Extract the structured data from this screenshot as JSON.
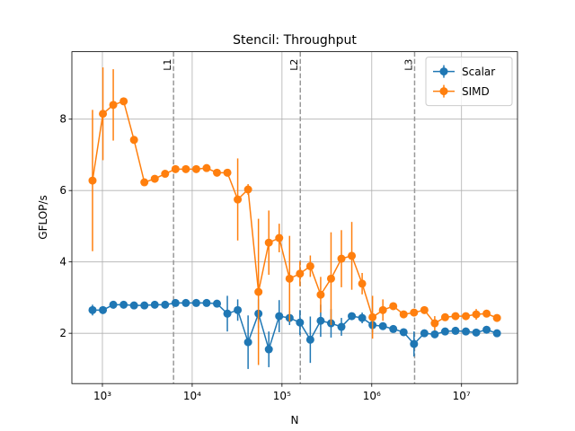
{
  "chart_data": {
    "type": "errorbar_line",
    "title": "Stencil: Throughput",
    "xlabel": "N",
    "ylabel": "GFLOP/s",
    "xscale": "log",
    "grid": true,
    "legend": "upper right",
    "xlim": [
      457,
      42000000
    ],
    "ylim": [
      0.59,
      9.89
    ],
    "xticks": [
      {
        "value": 1000,
        "label": "10³"
      },
      {
        "value": 10000,
        "label": "10⁴"
      },
      {
        "value": 100000,
        "label": "10⁵"
      },
      {
        "value": 1000000,
        "label": "10⁶"
      },
      {
        "value": 10000000,
        "label": "10⁷"
      }
    ],
    "yticks": [
      2,
      4,
      6,
      8
    ],
    "vlines": [
      {
        "value": 6200,
        "label": "L1"
      },
      {
        "value": 160000,
        "label": "L2"
      },
      {
        "value": 3000000,
        "label": "L3"
      }
    ],
    "x": [
      776,
      1013,
      1321,
      1724,
      2249,
      2934,
      3828,
      4995,
      6516,
      8502,
      11092,
      14472,
      18880,
      24634,
      32137,
      41933,
      54702,
      71368,
      93111,
      121478,
      158489,
      206776,
      269774,
      351962,
      459198,
      599100,
      781628,
      1019764,
      1330454,
      1735800,
      2264644,
      2954570,
      3854784,
      5029269,
      6561500,
      8560000,
      11168000,
      14571000,
      19011000,
      24803000
    ],
    "series": [
      {
        "name": "Scalar",
        "color": "#1f77b4",
        "values": [
          2.65,
          2.65,
          2.8,
          2.8,
          2.78,
          2.78,
          2.8,
          2.8,
          2.85,
          2.85,
          2.85,
          2.85,
          2.83,
          2.55,
          2.65,
          1.75,
          2.55,
          1.55,
          2.48,
          2.43,
          2.3,
          1.82,
          2.35,
          2.28,
          2.18,
          2.48,
          2.43,
          2.23,
          2.2,
          2.12,
          2.03,
          1.7,
          2.0,
          1.97,
          2.05,
          2.07,
          2.05,
          2.02,
          2.1,
          2.0
        ],
        "errors": [
          0.15,
          0.1,
          0.08,
          0.06,
          0.05,
          0.05,
          0.05,
          0.05,
          0.05,
          0.05,
          0.05,
          0.05,
          0.06,
          0.5,
          0.3,
          0.75,
          0.4,
          0.5,
          0.45,
          0.2,
          0.35,
          0.65,
          0.45,
          0.4,
          0.25,
          0.1,
          0.15,
          0.2,
          0.1,
          0.06,
          0.06,
          0.35,
          0.06,
          0.06,
          0.05,
          0.05,
          0.05,
          0.05,
          0.06,
          0.1
        ]
      },
      {
        "name": "SIMD",
        "color": "#ff7f0e",
        "values": [
          6.28,
          8.15,
          8.4,
          8.5,
          7.42,
          6.23,
          6.33,
          6.47,
          6.6,
          6.6,
          6.6,
          6.63,
          6.5,
          6.5,
          5.75,
          6.03,
          3.16,
          4.54,
          4.67,
          3.53,
          3.67,
          3.88,
          3.08,
          3.53,
          4.09,
          4.17,
          3.39,
          2.45,
          2.65,
          2.76,
          2.53,
          2.58,
          2.65,
          2.28,
          2.45,
          2.48,
          2.48,
          2.53,
          2.55,
          2.43
        ],
        "errors": [
          1.98,
          1.3,
          1.0,
          0.1,
          0.05,
          0.05,
          0.05,
          0.05,
          0.05,
          0.05,
          0.05,
          0.05,
          0.05,
          0.05,
          1.15,
          0.15,
          2.05,
          0.9,
          0.4,
          1.2,
          0.35,
          0.3,
          0.5,
          1.3,
          0.8,
          0.95,
          0.3,
          0.6,
          0.3,
          0.1,
          0.06,
          0.06,
          0.08,
          0.2,
          0.08,
          0.06,
          0.08,
          0.15,
          0.06,
          0.1
        ]
      }
    ]
  }
}
